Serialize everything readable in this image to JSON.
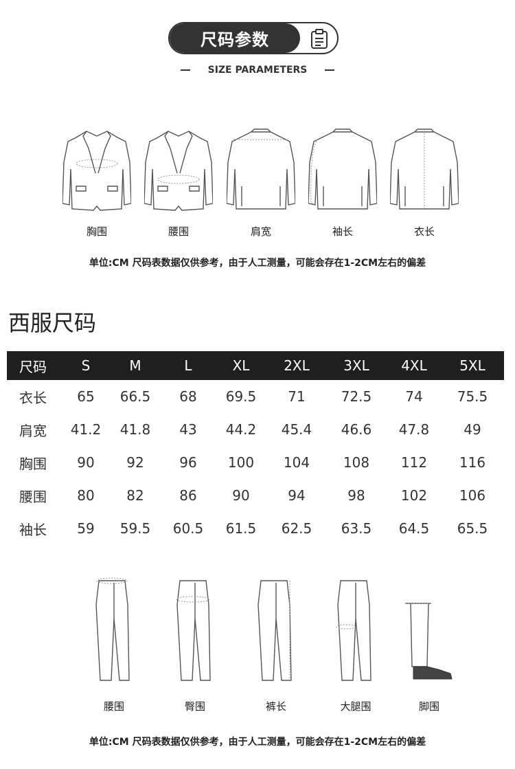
{
  "header": {
    "title": "尺码参数",
    "subtitle": "SIZE PARAMETERS",
    "icon": "clipboard-icon"
  },
  "jacket_figures": [
    {
      "label": "胸围"
    },
    {
      "label": "腰围"
    },
    {
      "label": "肩宽"
    },
    {
      "label": "袖长"
    },
    {
      "label": "衣长"
    }
  ],
  "note": "单位:CM  尺码表数据仅供参考，由于人工测量，可能会存在1-2CM左右的偏差",
  "section_title": "西服尺码",
  "table": {
    "headers": [
      "尺码",
      "S",
      "M",
      "L",
      "XL",
      "2XL",
      "3XL",
      "4XL",
      "5XL"
    ],
    "rows": [
      [
        "衣长",
        "65",
        "66.5",
        "68",
        "69.5",
        "71",
        "72.5",
        "74",
        "75.5"
      ],
      [
        "肩宽",
        "41.2",
        "41.8",
        "43",
        "44.2",
        "45.4",
        "46.6",
        "47.8",
        "49"
      ],
      [
        "胸围",
        "90",
        "92",
        "96",
        "100",
        "104",
        "108",
        "112",
        "116"
      ],
      [
        "腰围",
        "80",
        "82",
        "86",
        "90",
        "94",
        "98",
        "102",
        "106"
      ],
      [
        "袖长",
        "59",
        "59.5",
        "60.5",
        "61.5",
        "62.5",
        "63.5",
        "64.5",
        "65.5"
      ]
    ]
  },
  "pants_figures": [
    {
      "label": "腰围"
    },
    {
      "label": "臀围"
    },
    {
      "label": "裤长"
    },
    {
      "label": "大腿围"
    },
    {
      "label": "脚围"
    }
  ],
  "note_bottom": "单位:CM  尺码表数据仅供参考，由于人工测量，可能会存在1-2CM左右的偏差"
}
